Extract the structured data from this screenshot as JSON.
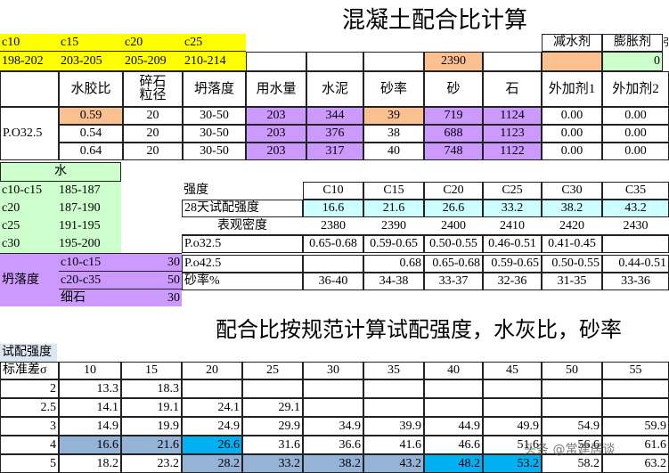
{
  "title": "混凝土配合比计算",
  "title2": "配合比按规范计算试配强度，水灰比，砂率",
  "grades": [
    "c10",
    "c15",
    "c20",
    "c25"
  ],
  "grade_strengths": [
    "198-202",
    "203-205",
    "205-209",
    "210-214"
  ],
  "additive_labels": {
    "reducer": "减水剂",
    "expansion": "膨胀剂",
    "extra": "引"
  },
  "sand_input": "2390",
  "expansion_value": "0",
  "mix_headers": {
    "wb": "水胶比",
    "stone_size": "碎石\n粒径",
    "slump": "坍落度",
    "water": "用水量",
    "cement": "水泥",
    "sand_ratio": "砂率",
    "sand": "砂",
    "stone": "石",
    "add1": "外加剂1",
    "add2": "外加剂2"
  },
  "cement_type": "P.O32.5",
  "mix_rows": [
    {
      "wb": "0.59",
      "size": "20",
      "slump": "30-50",
      "water": "203",
      "cement": "344",
      "ratio": "39",
      "sand": "719",
      "stone": "1124",
      "a1": "0.00",
      "a2": "0.00"
    },
    {
      "wb": "0.54",
      "size": "20",
      "slump": "30-50",
      "water": "203",
      "cement": "376",
      "ratio": "38",
      "sand": "688",
      "stone": "1123",
      "a1": "0.00",
      "a2": "0.00"
    },
    {
      "wb": "0.64",
      "size": "20",
      "slump": "30-50",
      "water": "203",
      "cement": "317",
      "ratio": "40",
      "sand": "748",
      "stone": "1122",
      "a1": "0.00",
      "a2": "0.00"
    }
  ],
  "water_title": "水",
  "water_rows": [
    {
      "g": "c10-c15",
      "v": "185-187"
    },
    {
      "g": "c20",
      "v": "187-190"
    },
    {
      "g": "c25",
      "v": "191-195"
    },
    {
      "g": "c30",
      "v": "195-200"
    }
  ],
  "slump_label": "坍落度",
  "slump_rows": [
    {
      "g": "c10-c15",
      "v": "30"
    },
    {
      "g": "c20-c35",
      "v": "50"
    },
    {
      "g": "细石",
      "v": "30"
    }
  ],
  "strength_table": {
    "headers": [
      "强度",
      "C10",
      "C15",
      "C20",
      "C25",
      "C30",
      "C35"
    ],
    "rows": [
      {
        "label": "28天试配强度",
        "vals": [
          "16.6",
          "21.6",
          "26.6",
          "33.2",
          "38.2",
          "43.2"
        ]
      },
      {
        "label": "表观密度",
        "vals": [
          "2380",
          "2390",
          "2400",
          "2410",
          "2420",
          "2430"
        ]
      },
      {
        "label": "P.o32.5",
        "vals": [
          "0.65-0.68",
          "0.59-0.65",
          "0.50-0.55",
          "0.46-0.51",
          "0.41-0.45",
          ""
        ]
      },
      {
        "label": "P.o42.5",
        "vals": [
          "",
          "0.68",
          "0.65-0.68",
          "0.59-0.65",
          "0.50-0.55",
          "0.44-0.51"
        ]
      },
      {
        "label": "砂率%",
        "vals": [
          "36-40",
          "34-38",
          "33-37",
          "32-36",
          "31-35",
          "33-36"
        ]
      }
    ]
  },
  "trial_label": "试配强度",
  "std_label": "标准差σ",
  "trial_cols": [
    "10",
    "15",
    "20",
    "25",
    "30",
    "35",
    "40",
    "45",
    "50",
    "55"
  ],
  "trial_rows": [
    {
      "s": "2",
      "vals": [
        "13.3",
        "18.3",
        "",
        "",
        "",
        "",
        "",
        "",
        "",
        ""
      ]
    },
    {
      "s": "2.5",
      "vals": [
        "14.1",
        "19.1",
        "24.1",
        "29.1",
        "",
        "",
        "",
        "",
        "",
        ""
      ]
    },
    {
      "s": "3",
      "vals": [
        "14.9",
        "19.9",
        "24.9",
        "29.9",
        "34.9",
        "39.9",
        "44.9",
        "49.9",
        "54.9",
        "59.9"
      ]
    },
    {
      "s": "4",
      "vals": [
        "16.6",
        "21.6",
        "26.6",
        "31.6",
        "36.6",
        "41.6",
        "46.6",
        "51.6",
        "56.6",
        "61.6"
      ]
    },
    {
      "s": "5",
      "vals": [
        "18.2",
        "23.2",
        "28.2",
        "33.2",
        "38.2",
        "43.2",
        "48.2",
        "53.2",
        "58.2",
        "63.2"
      ]
    }
  ],
  "watermark": "头条 @常建居谈",
  "colors": {
    "yellow": "#ffff00",
    "orange": "#fac090",
    "purple": "#cc99ff",
    "lightcyan": "#ccffff",
    "lightgreen": "#ccffcc",
    "blue": "#95b3d7",
    "cyan": "#00b0f0",
    "paleblue": "#dce6f1"
  }
}
